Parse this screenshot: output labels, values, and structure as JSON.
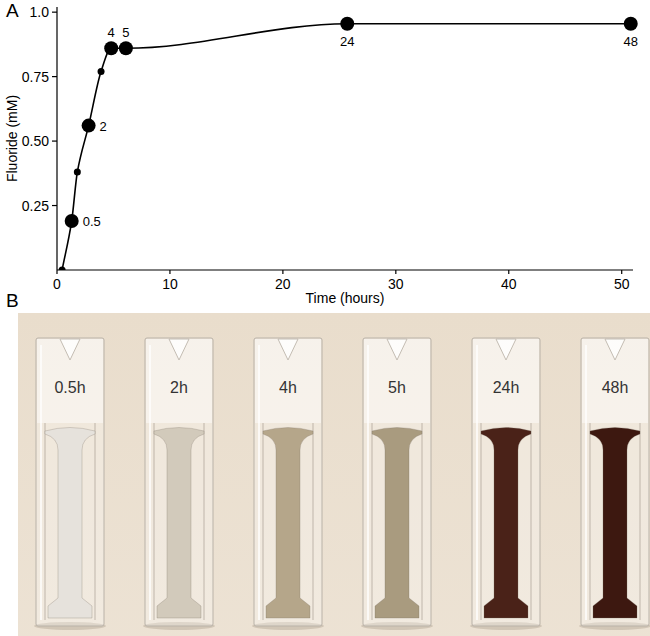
{
  "chart_data": {
    "type": "line",
    "panel_label": "A",
    "x_label": "Time (hours)",
    "y_label": "Fluoride (mM)",
    "x": [
      0.45,
      1.3,
      1.8,
      2.8,
      3.9,
      4.8,
      6.1,
      25.7,
      50.8
    ],
    "values": [
      0,
      0.19,
      0.38,
      0.56,
      0.77,
      0.86,
      0.86,
      0.955,
      0.955
    ],
    "point_labels": [
      null,
      "0.5",
      null,
      "2",
      null,
      "4",
      "5",
      "24",
      "48"
    ],
    "color": "#000000",
    "marker": "circle",
    "xlim": [
      0,
      51
    ],
    "xticks": [
      0,
      10,
      20,
      30,
      40,
      50
    ],
    "ylim": [
      0,
      1.02
    ],
    "yticks": [
      0.25,
      {
        "value": 0.5,
        "label": "0.50"
      },
      0.75,
      {
        "value": 1,
        "label": "1.0"
      }
    ],
    "grid": false
  },
  "photo": {
    "panel_label": "B",
    "background": "#e9ddcc",
    "cuvettes": [
      {
        "label": "0.5h",
        "color": "#e6e2dc"
      },
      {
        "label": "2h",
        "color": "#d2cabb"
      },
      {
        "label": "4h",
        "color": "#b5a68a"
      },
      {
        "label": "5h",
        "color": "#a99b7f"
      },
      {
        "label": "24h",
        "color": "#4a2218"
      },
      {
        "label": "48h",
        "color": "#3d1810"
      }
    ]
  }
}
